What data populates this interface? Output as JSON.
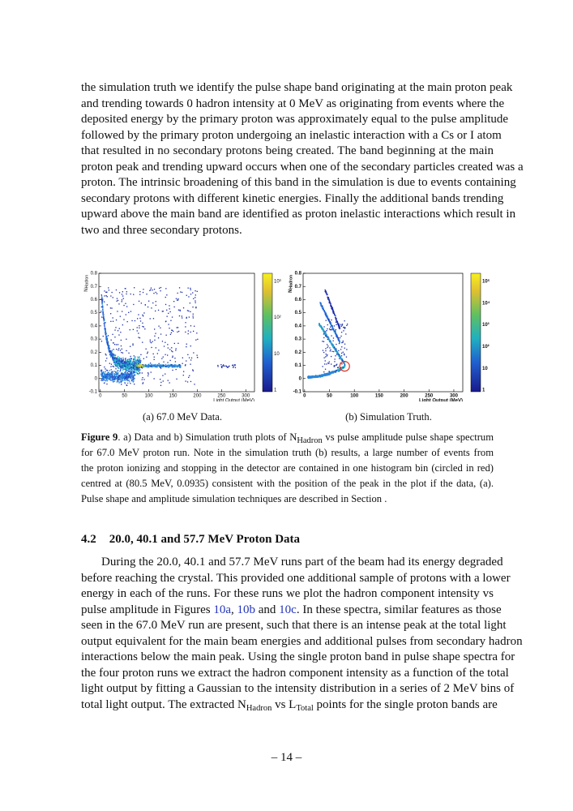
{
  "paragraph_1": {
    "lines": [
      "the simulation truth we identify the pulse shape band originating at the main proton peak",
      "and trending towards 0 hadron intensity at 0 MeV as originating from events where the",
      "deposited energy by the primary proton was approximately equal to the pulse amplitude",
      "followed by the primary proton undergoing an inelastic interaction with a Cs or I atom",
      "that resulted in no secondary protons being created.  The band beginning at the main",
      "proton peak and trending upward occurs when one of the secondary particles created was a",
      "proton.  The intrinsic broadening of this band in the simulation is due to events containing",
      "secondary protons with different kinetic energies.  Finally the additional bands trending",
      "upward above the main band are identified as proton inelastic interactions which result in",
      "two and three secondary protons."
    ]
  },
  "figure": {
    "panels": [
      {
        "y_label": [
          "N",
          "Hadron"
        ],
        "x_label": "Light Output (MeV)",
        "xticks": [
          0,
          50,
          100,
          150,
          200,
          250,
          300
        ],
        "yticks": [
          -0.1,
          0,
          0.1,
          0.2,
          0.3,
          0.4,
          0.5,
          0.6,
          0.7,
          0.8
        ],
        "colorbar_ticks": [
          "10³",
          "10²",
          "10",
          "1"
        ],
        "caption": "(a) 67.0 MeV Data."
      },
      {
        "y_label": [
          "N",
          "Hadron"
        ],
        "x_label": "Light Output (MeV)",
        "xticks": [
          0,
          50,
          100,
          150,
          200,
          250,
          300
        ],
        "yticks": [
          -0.1,
          0,
          0.1,
          0.2,
          0.3,
          0.4,
          0.5,
          0.6,
          0.7,
          0.8
        ],
        "colorbar_ticks": [
          "10⁵",
          "10⁴",
          "10³",
          "10²",
          "10",
          "1"
        ],
        "caption": "(b) Simulation Truth."
      }
    ],
    "caption_lines": [
      [
        "Figure 9",
        ".  a) Data and b) Simulation truth plots of N",
        "Hadron",
        " vs pulse amplitude pulse shape spectrum"
      ],
      "for 67.0 MeV proton run.  Note in the simulation truth (b) results, a large number of events from",
      "the proton ionizing and stopping in the detector are contained in one histogram bin (circled in red)",
      "centred at (80.5 MeV, 0.0935) consistent with the position of the peak in the plot if the data, (a).",
      "Pulse shape and amplitude simulation techniques are described in Section ."
    ]
  },
  "section": {
    "number": "4.2",
    "title": "20.0, 40.1 and 57.7 MeV Proton Data"
  },
  "paragraph_2": {
    "lines": [
      "During the 20.0, 40.1 and 57.7 MeV runs part of the beam had its energy degraded",
      "before reaching the crystal.  This provided one additional sample of protons with a lower",
      "energy in each of the runs.  For these runs we plot the hadron component intensity vs",
      [
        "pulse amplitude in Figures ",
        "10a",
        ", ",
        "10b",
        " and ",
        "10c",
        ".  In these spectra, similar features as those"
      ],
      "seen in the 67.0 MeV run are present, such that there is an intense peak at the total light",
      "output equivalent for the main beam energies and additional pulses from secondary hadron",
      "interactions below the main peak.  Using the single proton band in pulse shape spectra for",
      "the four proton runs we extract the hadron component intensity as a function of the total",
      "light output by fitting a Gaussian to the intensity distribution in a series of 2 MeV bins of",
      [
        "total light output.  The extracted N",
        "Hadron",
        " vs L",
        "Total",
        " points for the single proton bands are"
      ]
    ]
  },
  "page_number": "– 14 –"
}
